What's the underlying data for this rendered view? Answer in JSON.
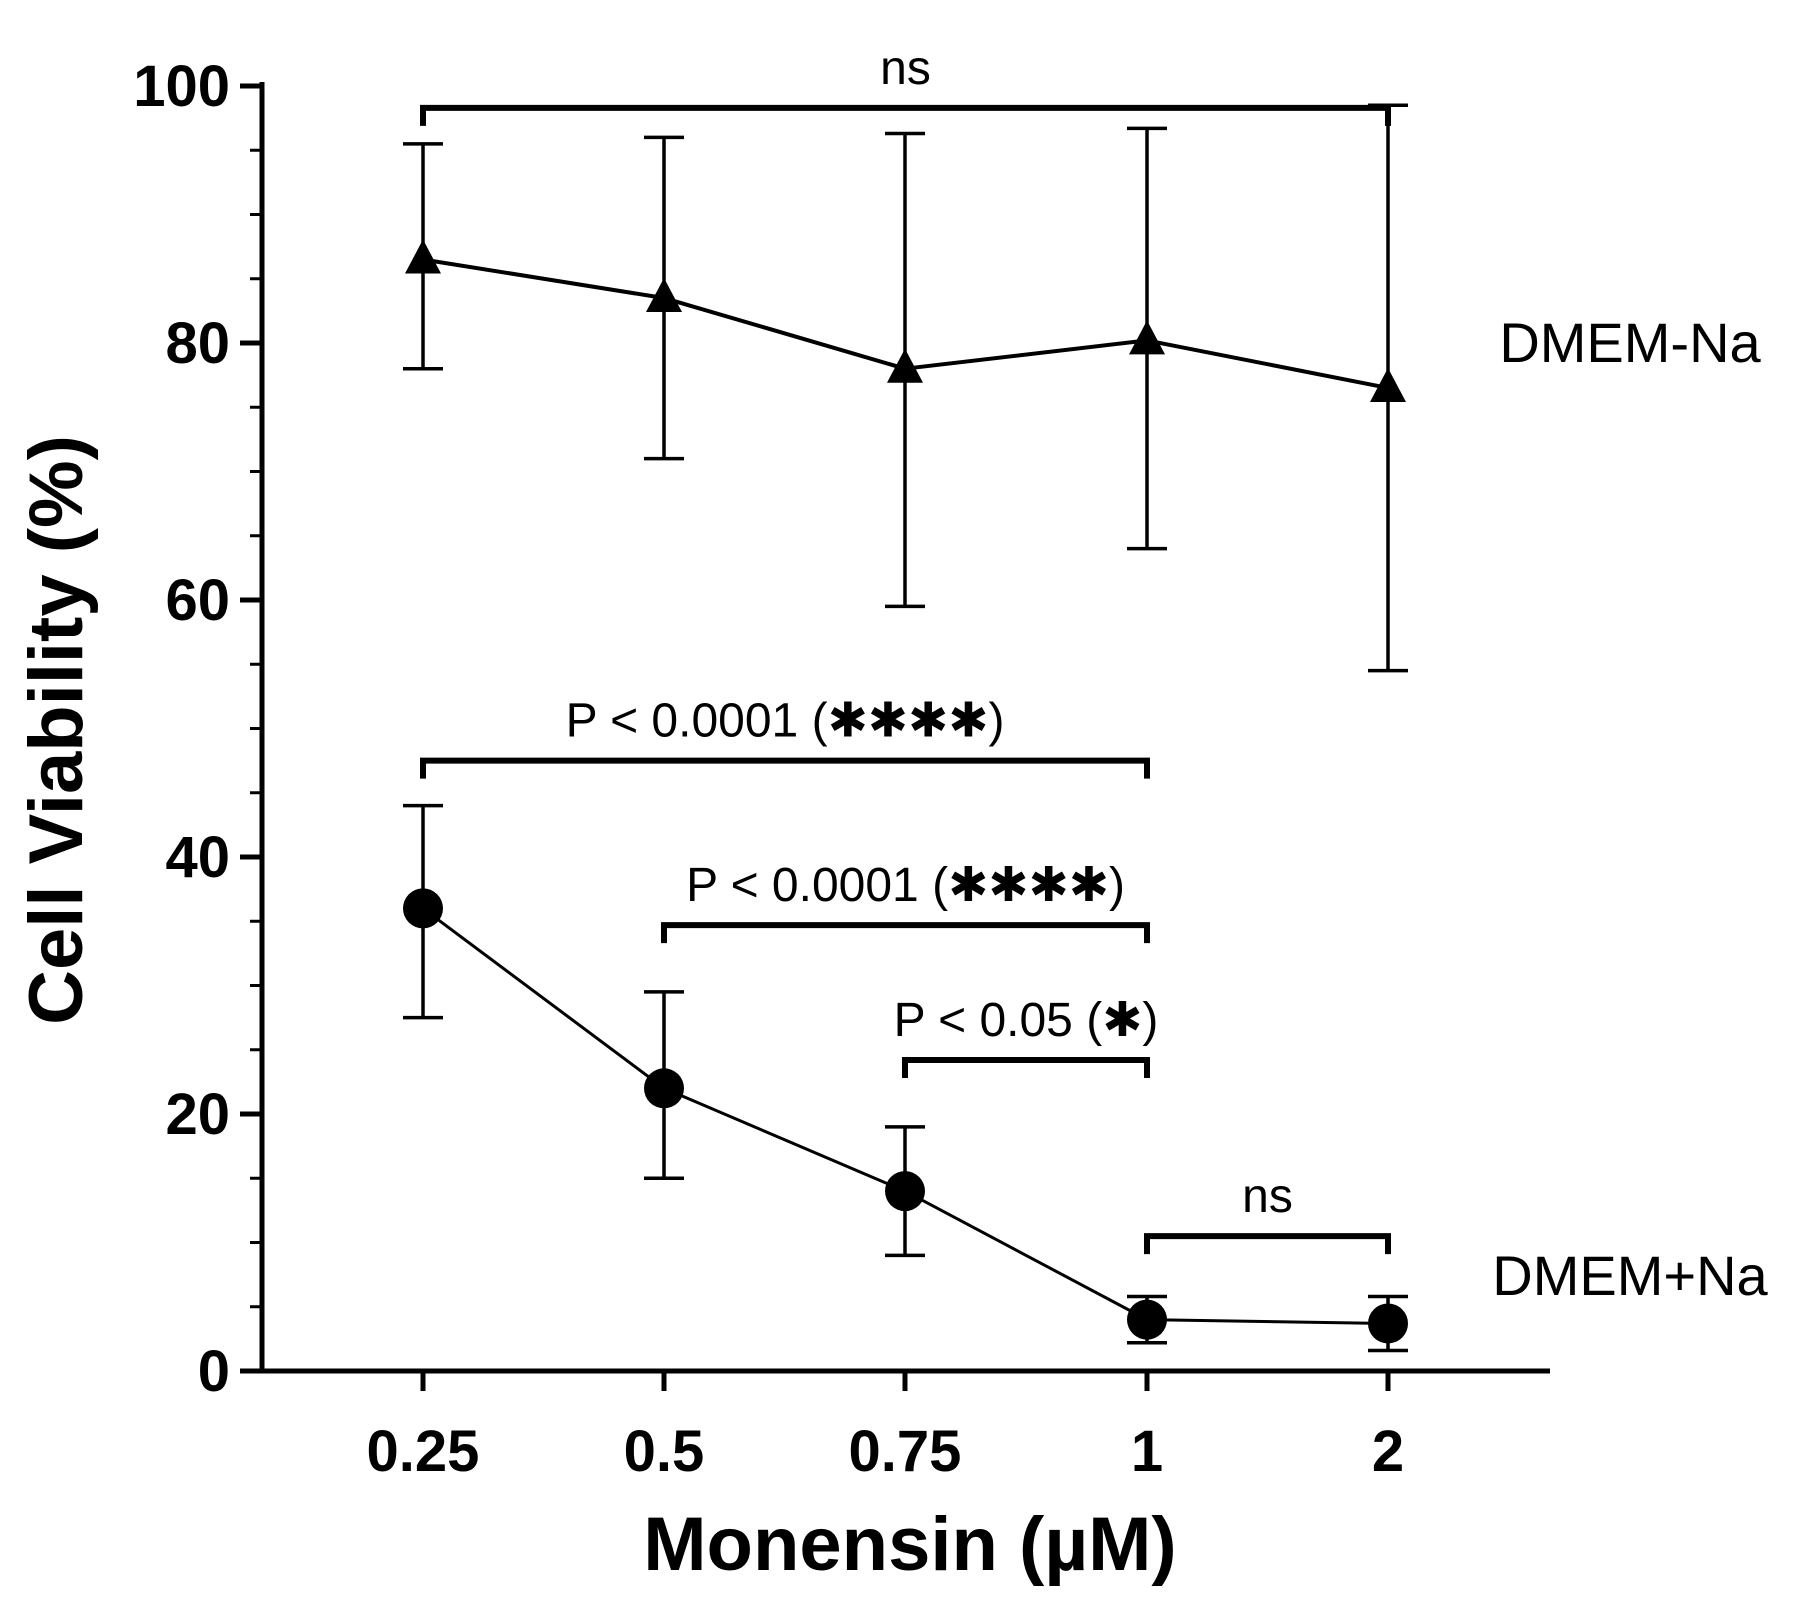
{
  "chart_data": {
    "type": "line",
    "title": "",
    "xlabel": "Monensin (µM)",
    "ylabel": "Cell Viability (%)",
    "categories": [
      "0.25",
      "0.5",
      "0.75",
      "1",
      "2"
    ],
    "ylim": [
      0,
      100
    ],
    "y_ticks": [
      "0",
      "20",
      "40",
      "60",
      "80",
      "100"
    ],
    "grid": false,
    "legend": "none",
    "series": [
      {
        "name": "DMEM-Na",
        "marker": "triangle",
        "values": [
          86.5,
          83.5,
          78,
          80.2,
          76.5
        ],
        "error_upper": [
          95.5,
          96,
          96.3,
          96.7,
          98.5
        ],
        "error_lower": [
          78,
          71,
          59.5,
          64,
          54.5
        ]
      },
      {
        "name": "DMEM+Na",
        "marker": "circle",
        "values": [
          36,
          22,
          14,
          4,
          3.7
        ],
        "error_upper": [
          44,
          29.5,
          19,
          5.8,
          5.8
        ],
        "error_lower": [
          27.5,
          15,
          9,
          2.2,
          1.6
        ]
      }
    ],
    "annotations": [
      {
        "text": "ns",
        "from": 0,
        "to": 4,
        "y": 98.3
      },
      {
        "text": "P < 0.0001 (✱✱✱✱)",
        "from": 0,
        "to": 3,
        "y": 47.5
      },
      {
        "text": "P < 0.0001 (✱✱✱✱)",
        "from": 1,
        "to": 3,
        "y": 34.7
      },
      {
        "text": "P < 0.05  (✱)",
        "from": 2,
        "to": 3,
        "y": 24.2
      },
      {
        "text": "ns",
        "from": 3,
        "to": 4,
        "y": 10.5
      }
    ]
  }
}
